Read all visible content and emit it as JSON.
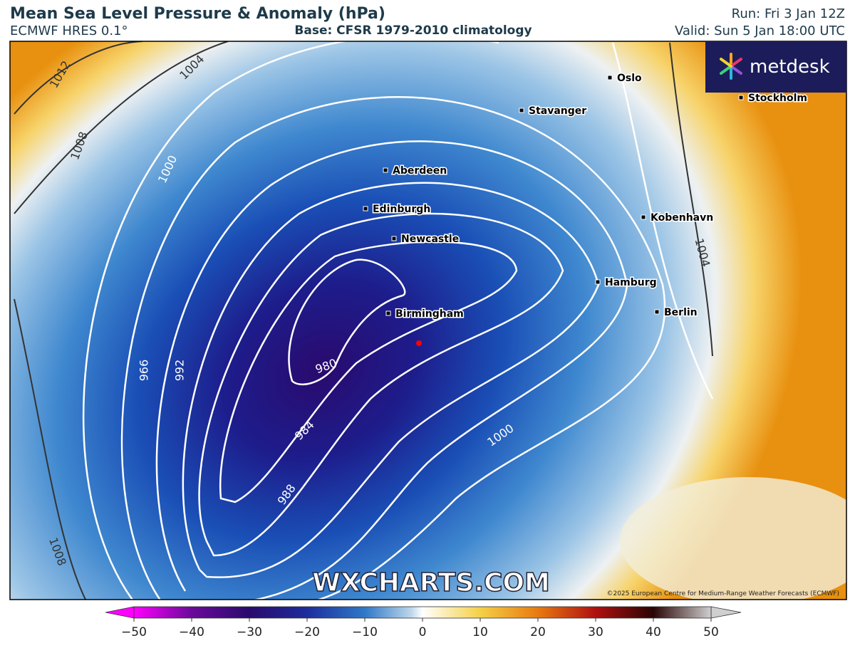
{
  "header": {
    "title": "Mean Sea Level Pressure & Anomaly (hPa)",
    "model": "ECMWF HRES 0.1°",
    "base": "Base: CFSR 1979-2010 climatology",
    "run": "Run: Fri 3 Jan 12Z",
    "valid": "Valid: Sun 5 Jan 18:00 UTC"
  },
  "logo": "metdesk",
  "cities": [
    {
      "label": "Oslo"
    },
    {
      "label": "Stockholm"
    },
    {
      "label": "Stavanger"
    },
    {
      "label": "Aberdeen"
    },
    {
      "label": "Edinburgh"
    },
    {
      "label": "Kobenhavn"
    },
    {
      "label": "Newcastle"
    },
    {
      "label": "Hamburg"
    },
    {
      "label": "Berlin"
    },
    {
      "label": "Birmingham"
    }
  ],
  "contour_labels": [
    "1012",
    "1004",
    "1008",
    "1000",
    "966",
    "992",
    "980",
    "984",
    "988",
    "1000",
    "1004",
    "1008"
  ],
  "watermark": "WXCHARTS.COM",
  "copyright": "©2025 European Centre for Medium-Range Weather Forecasts (ECMWF)",
  "colorbar": {
    "ticks": [
      "−50",
      "−40",
      "−30",
      "−20",
      "−10",
      "0",
      "10",
      "20",
      "30",
      "40",
      "50"
    ]
  }
}
